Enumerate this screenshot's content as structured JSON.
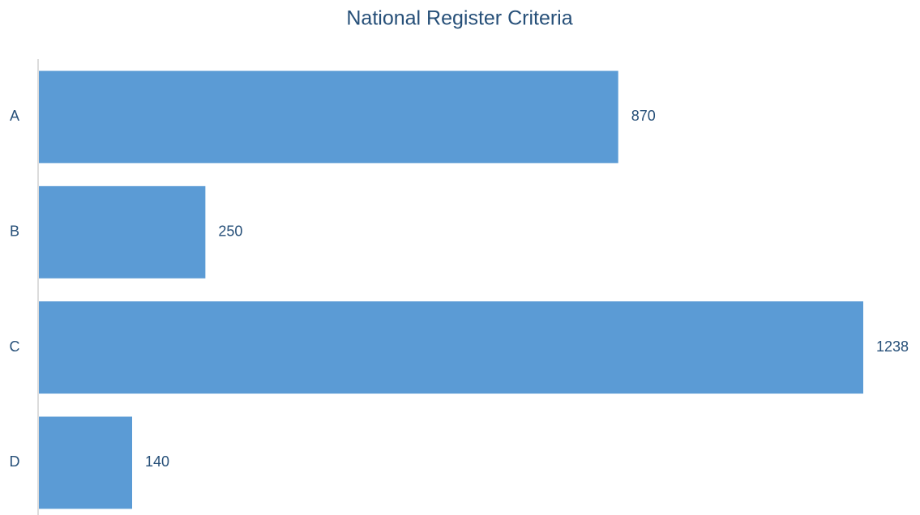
{
  "chart_data": {
    "type": "barh",
    "title": "National Register Criteria",
    "categories": [
      "A",
      "B",
      "C",
      "D"
    ],
    "values": [
      870,
      250,
      1238,
      140
    ],
    "color": "#5b9bd5"
  }
}
